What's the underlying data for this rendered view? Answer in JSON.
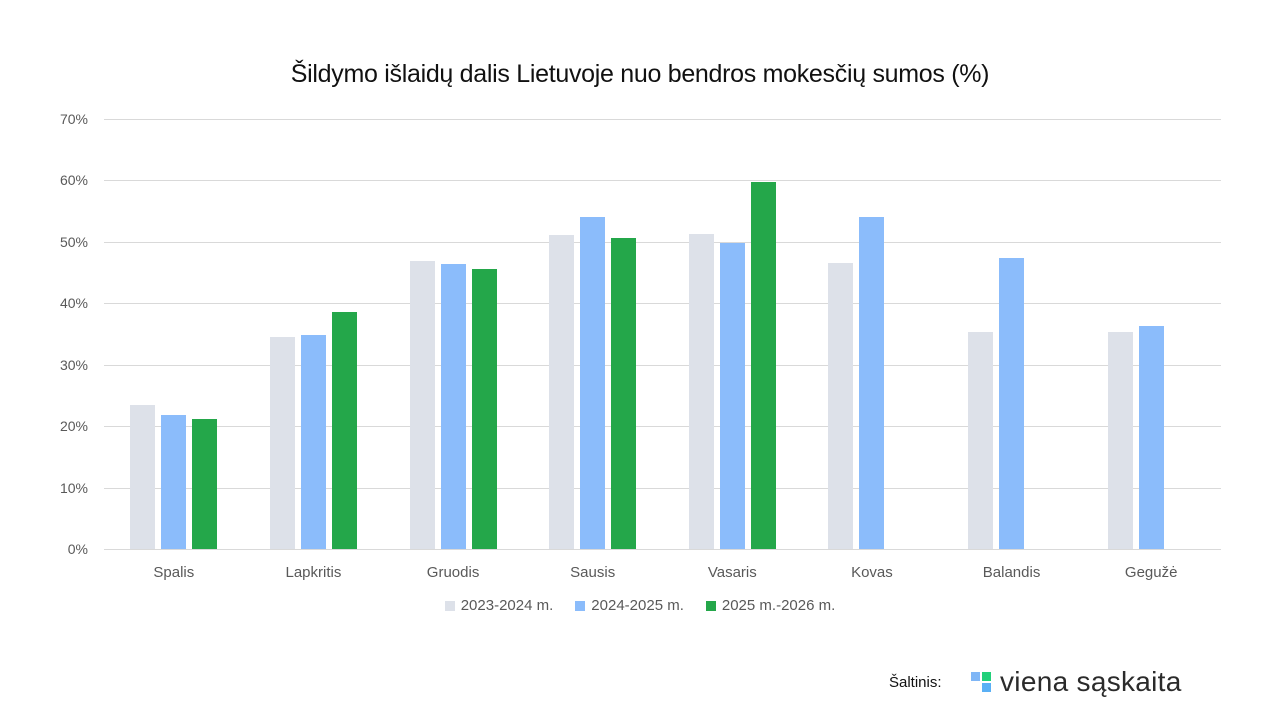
{
  "title": "Šildymo išlaidų dalis Lietuvoje nuo bendros mokesčių sumos (%)",
  "yaxis": {
    "ticks": [
      "0%",
      "10%",
      "20%",
      "30%",
      "40%",
      "50%",
      "60%",
      "70%"
    ]
  },
  "xaxis": {
    "categories": [
      "Spalis",
      "Lapkritis",
      "Gruodis",
      "Sausis",
      "Vasaris",
      "Kovas",
      "Balandis",
      "Gegužė"
    ]
  },
  "legend": [
    {
      "label": "2023-2024 m.",
      "color": "#dde1e9"
    },
    {
      "label": "2024-2025 m.",
      "color": "#8bbcfb"
    },
    {
      "label": "2025 m.-2026 m.",
      "color": "#24a74a"
    }
  ],
  "footer": {
    "source_label": "Šaltinis:",
    "brand": "viena sąskaita"
  },
  "chart_data": {
    "type": "bar",
    "title": "Šildymo išlaidų dalis Lietuvoje nuo bendros mokesčių sumos (%)",
    "xlabel": "",
    "ylabel": "",
    "ylim": [
      0,
      70
    ],
    "yticks": [
      0,
      10,
      20,
      30,
      40,
      50,
      60,
      70
    ],
    "grid": true,
    "legend_position": "bottom",
    "categories": [
      "Spalis",
      "Lapkritis",
      "Gruodis",
      "Sausis",
      "Vasaris",
      "Kovas",
      "Balandis",
      "Gegužė"
    ],
    "series": [
      {
        "name": "2023-2024 m.",
        "color": "#dde1e9",
        "values": [
          23.5,
          34.5,
          46.9,
          51.2,
          51.3,
          46.6,
          35.3,
          35.3
        ]
      },
      {
        "name": "2024-2025 m.",
        "color": "#8bbcfb",
        "values": [
          21.8,
          34.9,
          46.4,
          54.1,
          49.8,
          54.0,
          47.4,
          36.3
        ]
      },
      {
        "name": "2025 m.-2026 m.",
        "color": "#24a74a",
        "values": [
          21.2,
          38.6,
          45.6,
          50.7,
          59.7,
          null,
          null,
          null
        ]
      }
    ]
  }
}
